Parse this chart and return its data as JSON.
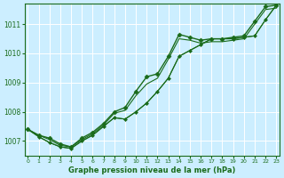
{
  "title": "Graphe pression niveau de la mer (hPa)",
  "bg_color": "#cceeff",
  "grid_color": "#ffffff",
  "line_color": "#1a6b1a",
  "x_ticks": [
    0,
    1,
    2,
    3,
    4,
    5,
    6,
    7,
    8,
    9,
    10,
    11,
    12,
    13,
    14,
    15,
    16,
    17,
    18,
    19,
    20,
    21,
    22,
    23
  ],
  "y_ticks": [
    1007,
    1008,
    1009,
    1010,
    1011
  ],
  "xlim": [
    -0.3,
    23.3
  ],
  "ylim": [
    1006.5,
    1011.7
  ],
  "series": [
    {
      "y": [
        1007.4,
        1007.2,
        1007.1,
        1006.9,
        1006.8,
        1007.1,
        1007.3,
        1007.6,
        1008.0,
        1008.15,
        1008.7,
        1009.2,
        1009.3,
        1009.9,
        1010.65,
        1010.55,
        1010.45,
        1010.5,
        1010.5,
        1010.55,
        1010.6,
        1011.1,
        1011.6,
        1011.65
      ],
      "lw": 1.0,
      "marker": "D",
      "ms": 2.5
    },
    {
      "y": [
        1007.4,
        1007.2,
        1007.05,
        1006.85,
        1006.8,
        1007.05,
        1007.25,
        1007.55,
        1007.95,
        1008.05,
        1008.55,
        1008.95,
        1009.15,
        1009.8,
        1010.5,
        1010.45,
        1010.35,
        1010.4,
        1010.4,
        1010.45,
        1010.5,
        1011.0,
        1011.5,
        1011.55
      ],
      "lw": 0.8,
      "marker": "",
      "ms": 0
    },
    {
      "y": [
        1007.4,
        1007.15,
        1006.95,
        1006.8,
        1006.75,
        1007.0,
        1007.2,
        1007.5,
        1007.8,
        1007.75,
        1008.0,
        1008.3,
        1008.7,
        1009.15,
        1009.9,
        1010.1,
        1010.3,
        1010.5,
        1010.5,
        1010.5,
        1010.55,
        1010.6,
        1011.15,
        1011.65
      ],
      "lw": 0.8,
      "marker": "D",
      "ms": 2.0
    },
    {
      "y": [
        1007.4,
        1007.15,
        1006.95,
        1006.8,
        1006.75,
        1007.0,
        1007.2,
        1007.5,
        1007.8,
        1007.75,
        1008.0,
        1008.3,
        1008.7,
        1009.15,
        1009.9,
        1010.1,
        1010.3,
        1010.5,
        1010.5,
        1010.5,
        1010.55,
        1010.6,
        1011.15,
        1011.65
      ],
      "lw": 0.8,
      "marker": "",
      "ms": 0
    }
  ]
}
